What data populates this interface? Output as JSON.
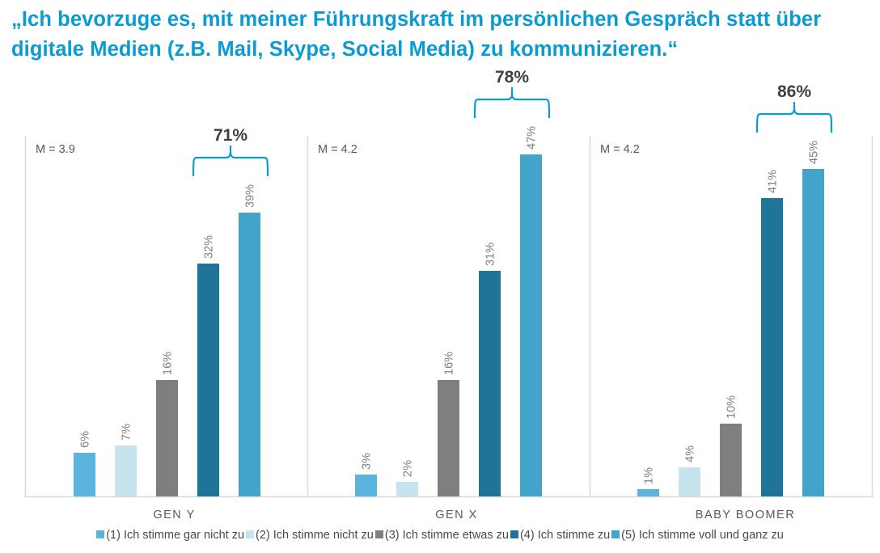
{
  "title": "„Ich bevorzuge es, mit meiner Führungskraft im persönlichen Gespräch statt über digitale Medien (z.B. Mail, Skype, Social Media) zu kommunizieren.“",
  "chart_data": {
    "type": "bar",
    "title": "„Ich bevorzuge es, mit meiner Führungskraft im persönlichen Gespräch statt über digitale Medien (z.B. Mail, Skype, Social Media) zu kommunizieren.“",
    "xlabel": "",
    "ylabel": "",
    "ylim": [
      0,
      50
    ],
    "grid": false,
    "legend_position": "bottom",
    "categories": [
      "GEN Y",
      "GEN X",
      "BABY BOOMER"
    ],
    "means": [
      "M = 3.9",
      "M = 4.2",
      "M = 4.2"
    ],
    "top_two_box": [
      "71%",
      "78%",
      "86%"
    ],
    "series": [
      {
        "name": "(1) Ich stimme gar nicht zu",
        "color": "#5ab4dc",
        "values": [
          6,
          3,
          1
        ]
      },
      {
        "name": "(2) Ich stimme nicht zu",
        "color": "#c7e3ee",
        "values": [
          7,
          2,
          4
        ]
      },
      {
        "name": "(3) Ich stimme etwas zu",
        "color": "#7f7f7f",
        "values": [
          16,
          16,
          10
        ]
      },
      {
        "name": "(4) Ich stimme zu",
        "color": "#1f7498",
        "values": [
          32,
          31,
          41
        ]
      },
      {
        "name": "(5) Ich stimme voll und ganz zu",
        "color": "#41a4c8",
        "values": [
          39,
          47,
          45
        ]
      }
    ],
    "value_suffix": "%"
  },
  "colors": {
    "title": "#0a9bd3",
    "brace": "#0a9bd3",
    "axis": "#d9d9d9",
    "label": "#7f7f7f",
    "text": "#404040"
  }
}
